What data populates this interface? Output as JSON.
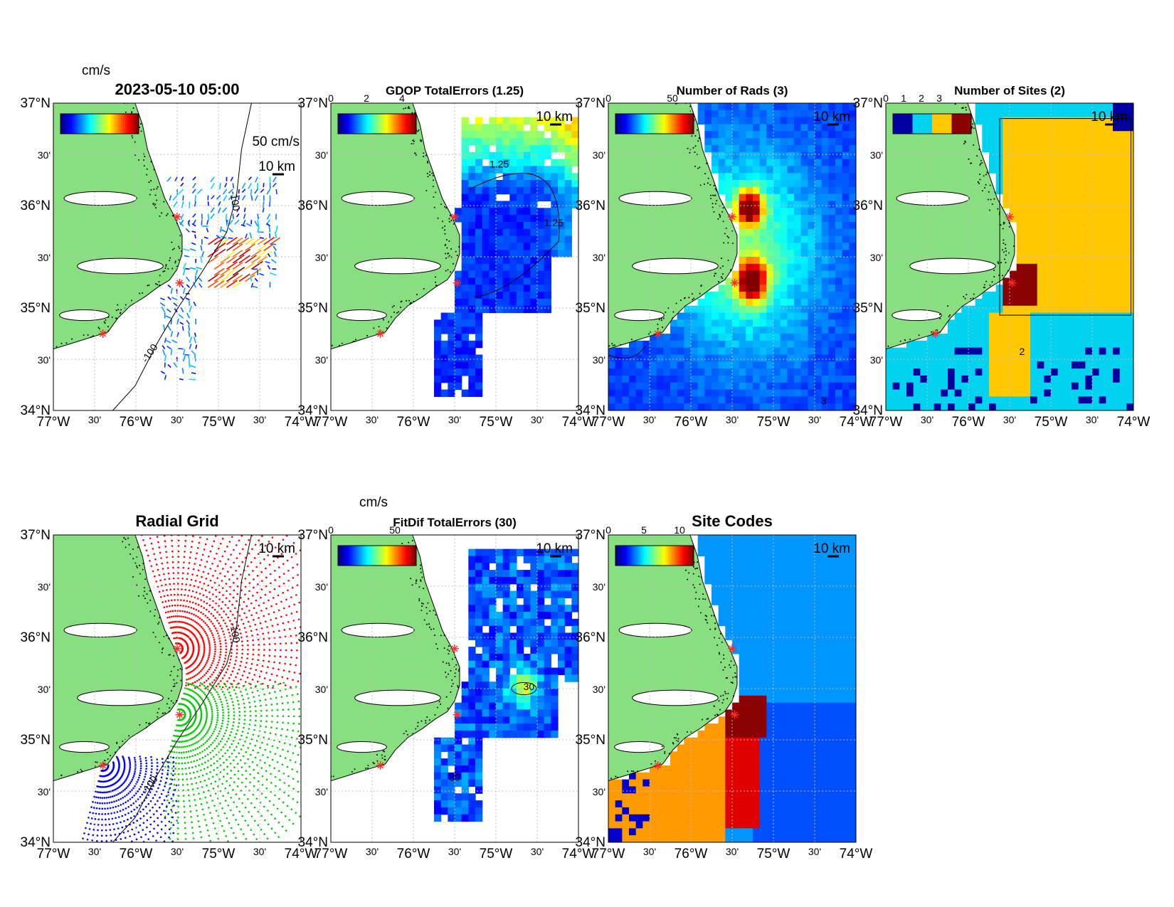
{
  "colors": {
    "land": "#87df7f",
    "ocean": "#ffffff",
    "grid": "#bfbfbf",
    "site_marker": "#ff2a2a",
    "contour": "#000000"
  },
  "axes_labels": {
    "lat": [
      "37°N",
      "30'",
      "36°N",
      "30'",
      "35°N",
      "30'",
      "34°N"
    ],
    "lon": [
      "77°W",
      "30'",
      "76°W",
      "30'",
      "75°W",
      "30'",
      "74°W"
    ]
  },
  "scale_bar_label": "10 km",
  "colormap": "jet",
  "chart_data": [
    {
      "type": "heatmap",
      "id": "velocity",
      "title": "2023-05-10 05:00",
      "colorbar_unit": "cm/s",
      "vector_scale_label": "50 cm/s",
      "isobath_label": "-100",
      "isobath_label_2": "-100",
      "lat_range": [
        34,
        37
      ],
      "lon_range": [
        -77,
        -74
      ],
      "colorbar_ticks": []
    },
    {
      "type": "heatmap",
      "id": "gdop",
      "title": "GDOP TotalErrors (1.25)",
      "colorbar_ticks": [
        "0",
        "2",
        "4"
      ],
      "contour_label": "1.25",
      "contour_label_2": "1.25",
      "lat_range": [
        34,
        37
      ],
      "lon_range": [
        -77,
        -74
      ]
    },
    {
      "type": "heatmap",
      "id": "numrads",
      "title": "Number of Rads (3)",
      "colorbar_ticks": [
        "0",
        "50"
      ],
      "contour_label": "3",
      "lat_range": [
        34,
        37
      ],
      "lon_range": [
        -77,
        -74
      ]
    },
    {
      "type": "heatmap",
      "id": "numsites",
      "title": "Number of Sites (2)",
      "colorbar_ticks": [
        "0",
        "1",
        "2",
        "3"
      ],
      "contour_label": "2",
      "lat_range": [
        34,
        37
      ],
      "lon_range": [
        -77,
        -74
      ]
    },
    {
      "type": "scatter",
      "id": "radialgrid",
      "title": "Radial Grid",
      "isobath_label": "-100",
      "isobath_label_2": "-100",
      "series_colors": [
        "#ff0000",
        "#00cc00",
        "#0000ff"
      ],
      "lat_range": [
        34,
        37
      ],
      "lon_range": [
        -77,
        -74
      ]
    },
    {
      "type": "heatmap",
      "id": "fitdif",
      "title": "FitDif TotalErrors (30)",
      "colorbar_unit": "cm/s",
      "colorbar_ticks": [
        "0",
        "50"
      ],
      "contour_label": "30",
      "contour_label_2": "30",
      "lat_range": [
        34,
        37
      ],
      "lon_range": [
        -77,
        -74
      ]
    },
    {
      "type": "heatmap",
      "id": "sitecodes",
      "title": "Site Codes",
      "colorbar_ticks": [
        "0",
        "5",
        "10"
      ],
      "lat_range": [
        34,
        37
      ],
      "lon_range": [
        -77,
        -74
      ]
    }
  ]
}
